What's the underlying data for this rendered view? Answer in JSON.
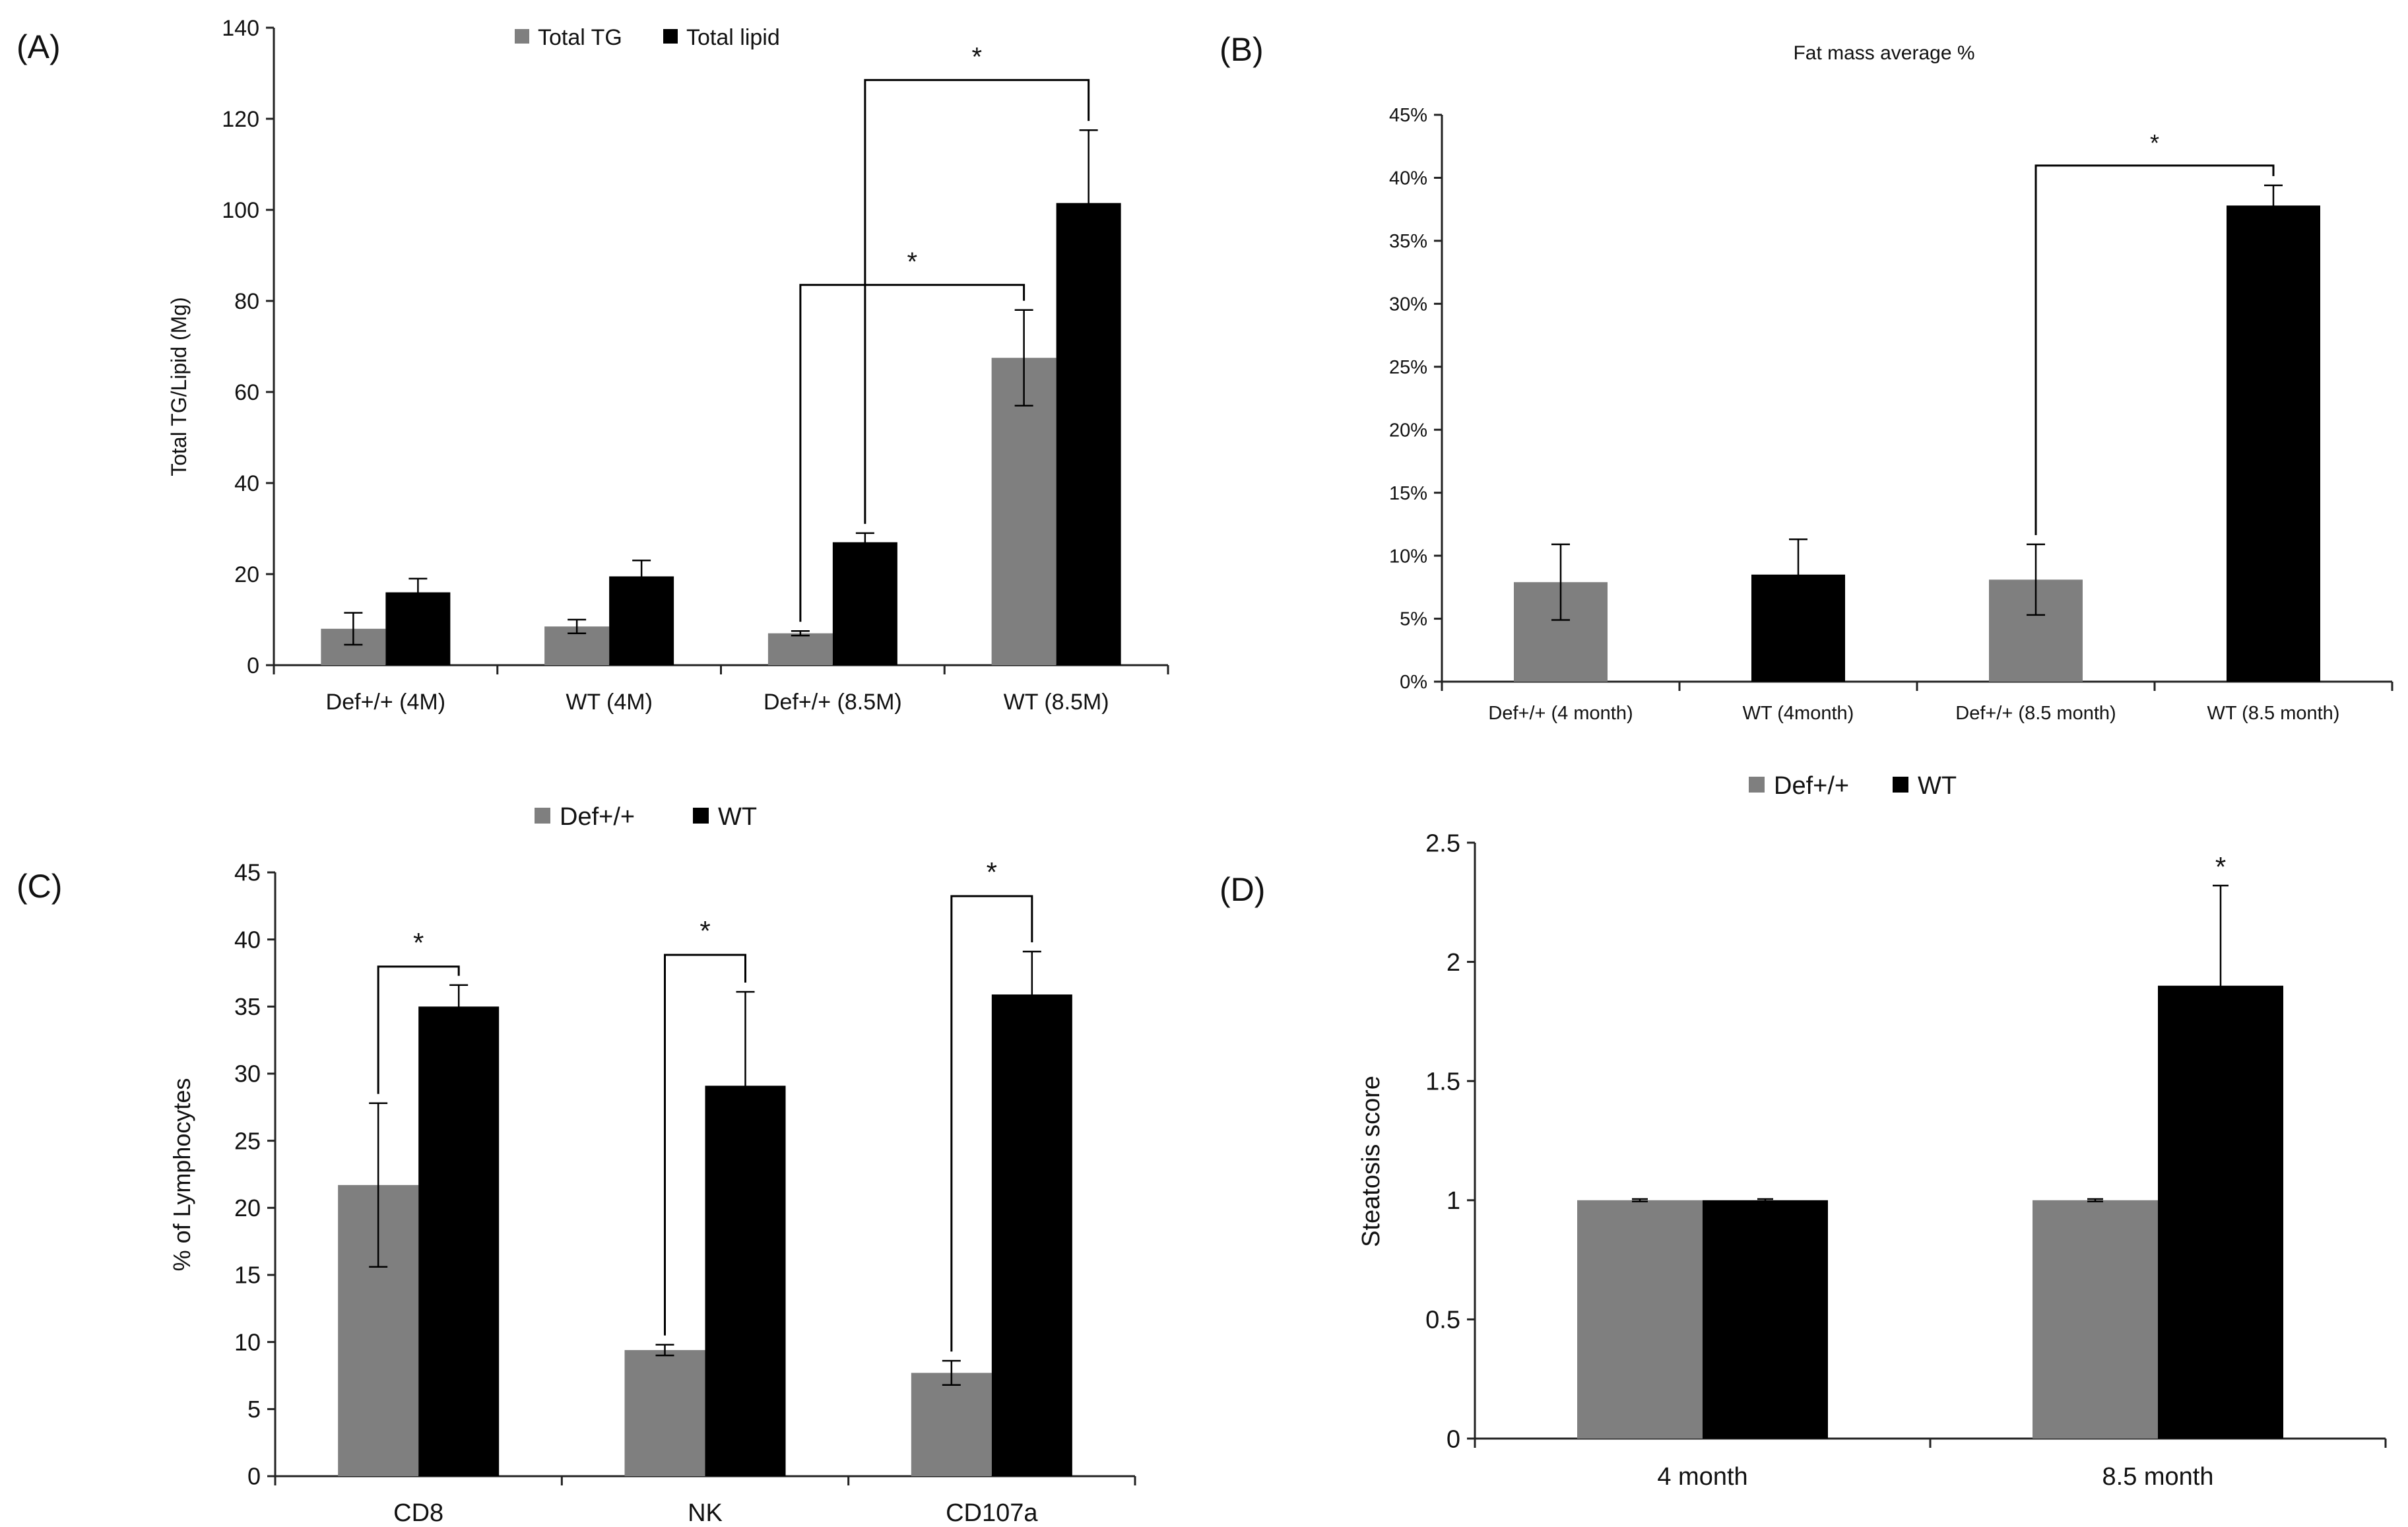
{
  "colors": {
    "gray": "#7f7f7f",
    "black": "#000000",
    "axis": "#222222"
  },
  "chart_data": [
    {
      "panel_label": "(A)",
      "type": "bar",
      "title": "",
      "xlabel": "",
      "ylabel": "Total TG/Lipid (Mg)",
      "ylim": [
        0,
        140
      ],
      "yticks": [
        "0",
        "20",
        "40",
        "60",
        "80",
        "100",
        "120",
        "140"
      ],
      "categories": [
        "Def+/+  (4M)",
        "WT (4M)",
        "Def+/+  (8.5M)",
        "WT (8.5M)"
      ],
      "legend": "top-center",
      "series": [
        {
          "name": "Total TG",
          "color": "gray",
          "values": [
            8,
            8.5,
            7,
            67.5
          ],
          "errors": [
            3.5,
            1.5,
            0.5,
            10.5
          ]
        },
        {
          "name": "Total lipid",
          "color": "black",
          "values": [
            16,
            19.5,
            27,
            101.5
          ],
          "errors": [
            3,
            3.5,
            2,
            16
          ]
        }
      ],
      "significance": [
        {
          "from": [
            2,
            0
          ],
          "to": [
            3,
            0
          ],
          "label": "*"
        },
        {
          "from": [
            2,
            1
          ],
          "to": [
            3,
            1
          ],
          "label": "*"
        }
      ]
    },
    {
      "panel_label": "(B)",
      "type": "bar",
      "title": "Fat mass average %",
      "xlabel": "",
      "ylabel": "",
      "ylim": [
        0,
        45
      ],
      "yticks": [
        "0%",
        "5%",
        "10%",
        "15%",
        "20%",
        "25%",
        "30%",
        "35%",
        "40%",
        "45%"
      ],
      "categories": [
        "Def+/+ (4 month)",
        "WT (4month)",
        "Def+/+ (8.5 month)",
        "WT (8.5 month)"
      ],
      "series": [
        {
          "name": "Fat mass",
          "values": [
            7.9,
            8.5,
            8.1,
            37.8
          ],
          "errors": [
            3,
            2.8,
            2.8,
            1.6
          ],
          "colors": [
            "gray",
            "black",
            "gray",
            "black"
          ]
        }
      ],
      "significance": [
        {
          "from": [
            2,
            0
          ],
          "to": [
            3,
            0
          ],
          "label": "*"
        }
      ]
    },
    {
      "panel_label": "(C)",
      "type": "bar",
      "title": "",
      "xlabel": "",
      "ylabel": "% of Lymphocytes",
      "ylim": [
        0,
        45
      ],
      "yticks": [
        "0",
        "5",
        "10",
        "15",
        "20",
        "25",
        "30",
        "35",
        "40",
        "45"
      ],
      "categories": [
        "CD8",
        "NK",
        "CD107a"
      ],
      "legend": "top-center",
      "series": [
        {
          "name": "Def+/+",
          "color": "gray",
          "values": [
            21.7,
            9.4,
            7.7
          ],
          "errors": [
            6.1,
            0.4,
            0.9
          ]
        },
        {
          "name": "WT",
          "color": "black",
          "values": [
            35,
            29.1,
            35.9
          ],
          "errors": [
            1.6,
            7,
            3.2
          ]
        }
      ],
      "significance": [
        {
          "from": [
            0,
            0
          ],
          "to": [
            0,
            1
          ],
          "label": "*"
        },
        {
          "from": [
            1,
            0
          ],
          "to": [
            1,
            1
          ],
          "label": "*"
        },
        {
          "from": [
            2,
            0
          ],
          "to": [
            2,
            1
          ],
          "label": "*"
        }
      ]
    },
    {
      "panel_label": "(D)",
      "type": "bar",
      "title": "",
      "xlabel": "",
      "ylabel": "Steatosis score",
      "ylim": [
        0,
        2.5
      ],
      "yticks": [
        "0",
        "0.5",
        "1",
        "1.5",
        "2",
        "2.5"
      ],
      "categories": [
        "4 month",
        "8.5 month"
      ],
      "legend": "top-center",
      "series": [
        {
          "name": "Def+/+",
          "color": "gray",
          "values": [
            1,
            1
          ],
          "errors": [
            0.005,
            0.005
          ]
        },
        {
          "name": "WT",
          "color": "black",
          "values": [
            1,
            1.9
          ],
          "errors": [
            0.005,
            0.42
          ]
        }
      ],
      "significance_marks": [
        {
          "category": 1,
          "series": 1,
          "label": "*"
        }
      ]
    }
  ]
}
